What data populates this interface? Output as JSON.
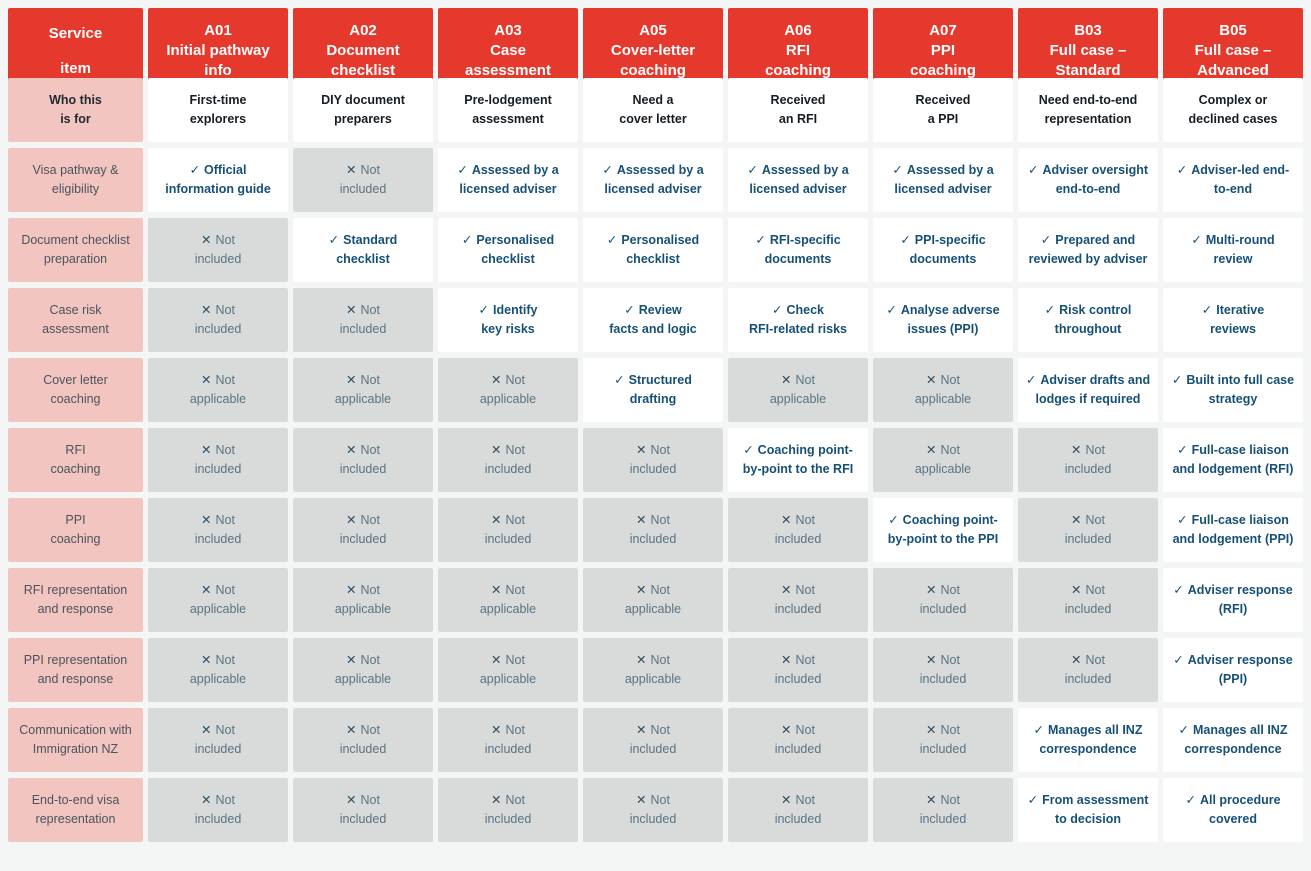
{
  "colors": {
    "page_background": "#f4f5f5",
    "header_background": "#e5392d",
    "header_text": "#ffffff",
    "row_label_background": "#f2c5c0",
    "row_label_text": "#4a545e",
    "included_text": "#175077",
    "excluded_background": "#d9dbda",
    "excluded_text": "#5a7382"
  },
  "table": {
    "corner_header": "Service\n\nitem",
    "column_headers": [
      "A01\nInitial pathway\ninfo",
      "A02\nDocument\nchecklist",
      "A03\nCase\nassessment",
      "A05\nCover-letter\ncoaching",
      "A06\nRFI\ncoaching",
      "A07\nPPI\ncoaching",
      "B03\nFull case –\nStandard",
      "B05\nFull case –\nAdvanced"
    ],
    "marks": {
      "yes": "✓",
      "no": "✕"
    },
    "rows": [
      {
        "label": "Who this\nis for",
        "label_bold": true,
        "cells": [
          {
            "type": "info",
            "text": "First-time\nexplorers"
          },
          {
            "type": "info",
            "text": "DIY document\npreparers"
          },
          {
            "type": "info",
            "text": "Pre-lodgement\nassessment"
          },
          {
            "type": "info",
            "text": "Need a\ncover letter"
          },
          {
            "type": "info",
            "text": "Received\nan RFI"
          },
          {
            "type": "info",
            "text": "Received\na PPI"
          },
          {
            "type": "info",
            "text": "Need end-to-end\nrepresentation"
          },
          {
            "type": "info",
            "text": "Complex or\ndeclined cases"
          }
        ]
      },
      {
        "label": "Visa pathway &\neligibility",
        "cells": [
          {
            "type": "yes",
            "text": "Official\ninformation guide"
          },
          {
            "type": "no",
            "text": "Not\nincluded"
          },
          {
            "type": "yes",
            "text": "Assessed by a\nlicensed adviser"
          },
          {
            "type": "yes",
            "text": "Assessed by a\nlicensed adviser"
          },
          {
            "type": "yes",
            "text": "Assessed by a\nlicensed adviser"
          },
          {
            "type": "yes",
            "text": "Assessed by a\nlicensed adviser"
          },
          {
            "type": "yes",
            "text": "Adviser oversight\nend-to-end"
          },
          {
            "type": "yes",
            "text": "Adviser-led end-\nto-end"
          }
        ]
      },
      {
        "label": "Document checklist\npreparation",
        "cells": [
          {
            "type": "no",
            "text": "Not\nincluded"
          },
          {
            "type": "yes",
            "text": "Standard\nchecklist"
          },
          {
            "type": "yes",
            "text": "Personalised\nchecklist"
          },
          {
            "type": "yes",
            "text": "Personalised\nchecklist"
          },
          {
            "type": "yes",
            "text": "RFI-specific\ndocuments"
          },
          {
            "type": "yes",
            "text": "PPI-specific\ndocuments"
          },
          {
            "type": "yes",
            "text": "Prepared and\nreviewed by adviser"
          },
          {
            "type": "yes",
            "text": "Multi-round\nreview"
          }
        ]
      },
      {
        "label": "Case risk\nassessment",
        "cells": [
          {
            "type": "no",
            "text": "Not\nincluded"
          },
          {
            "type": "no",
            "text": "Not\nincluded"
          },
          {
            "type": "yes",
            "text": "Identify\nkey risks"
          },
          {
            "type": "yes",
            "text": "Review\nfacts and logic"
          },
          {
            "type": "yes",
            "text": "Check\nRFI-related risks"
          },
          {
            "type": "yes",
            "text": "Analyse adverse\nissues (PPI)"
          },
          {
            "type": "yes",
            "text": "Risk control\nthroughout"
          },
          {
            "type": "yes",
            "text": "Iterative\nreviews"
          }
        ]
      },
      {
        "label": "Cover letter\ncoaching",
        "cells": [
          {
            "type": "no",
            "text": "Not\napplicable"
          },
          {
            "type": "no",
            "text": "Not\napplicable"
          },
          {
            "type": "no",
            "text": "Not\napplicable"
          },
          {
            "type": "yes",
            "text": "Structured\ndrafting"
          },
          {
            "type": "no",
            "text": "Not\napplicable"
          },
          {
            "type": "no",
            "text": "Not\napplicable"
          },
          {
            "type": "yes",
            "text": "Adviser drafts and\nlodges if required"
          },
          {
            "type": "yes",
            "text": "Built into full case\nstrategy"
          }
        ]
      },
      {
        "label": "RFI\ncoaching",
        "cells": [
          {
            "type": "no",
            "text": "Not\nincluded"
          },
          {
            "type": "no",
            "text": "Not\nincluded"
          },
          {
            "type": "no",
            "text": "Not\nincluded"
          },
          {
            "type": "no",
            "text": "Not\nincluded"
          },
          {
            "type": "yes",
            "text": "Coaching point-\nby-point to the RFI"
          },
          {
            "type": "no",
            "text": "Not\napplicable"
          },
          {
            "type": "no",
            "text": "Not\nincluded"
          },
          {
            "type": "yes",
            "text": "Full-case liaison\nand lodgement (RFI)"
          }
        ]
      },
      {
        "label": "PPI\ncoaching",
        "cells": [
          {
            "type": "no",
            "text": "Not\nincluded"
          },
          {
            "type": "no",
            "text": "Not\nincluded"
          },
          {
            "type": "no",
            "text": "Not\nincluded"
          },
          {
            "type": "no",
            "text": "Not\nincluded"
          },
          {
            "type": "no",
            "text": "Not\nincluded"
          },
          {
            "type": "yes",
            "text": "Coaching point-\nby-point to the PPI"
          },
          {
            "type": "no",
            "text": "Not\nincluded"
          },
          {
            "type": "yes",
            "text": "Full-case liaison\nand lodgement (PPI)"
          }
        ]
      },
      {
        "label": "RFI representation\nand  response",
        "cells": [
          {
            "type": "no",
            "text": "Not\napplicable"
          },
          {
            "type": "no",
            "text": "Not\napplicable"
          },
          {
            "type": "no",
            "text": "Not\napplicable"
          },
          {
            "type": "no",
            "text": "Not\napplicable"
          },
          {
            "type": "no",
            "text": "Not\nincluded"
          },
          {
            "type": "no",
            "text": "Not\nincluded"
          },
          {
            "type": "no",
            "text": "Not\nincluded"
          },
          {
            "type": "yes",
            "text": "Adviser response\n(RFI)"
          }
        ]
      },
      {
        "label": "PPI representation\nand  response",
        "cells": [
          {
            "type": "no",
            "text": "Not\napplicable"
          },
          {
            "type": "no",
            "text": "Not\napplicable"
          },
          {
            "type": "no",
            "text": "Not\napplicable"
          },
          {
            "type": "no",
            "text": "Not\napplicable"
          },
          {
            "type": "no",
            "text": "Not\nincluded"
          },
          {
            "type": "no",
            "text": "Not\nincluded"
          },
          {
            "type": "no",
            "text": "Not\nincluded"
          },
          {
            "type": "yes",
            "text": "Adviser response\n(PPI)"
          }
        ]
      },
      {
        "label": "Communication with\nImmigration NZ",
        "cells": [
          {
            "type": "no",
            "text": "Not\nincluded"
          },
          {
            "type": "no",
            "text": "Not\nincluded"
          },
          {
            "type": "no",
            "text": "Not\nincluded"
          },
          {
            "type": "no",
            "text": "Not\nincluded"
          },
          {
            "type": "no",
            "text": "Not\nincluded"
          },
          {
            "type": "no",
            "text": "Not\nincluded"
          },
          {
            "type": "yes",
            "text": "Manages all INZ\ncorrespondence"
          },
          {
            "type": "yes",
            "text": "Manages all INZ\ncorrespondence"
          }
        ]
      },
      {
        "label": "End-to-end visa\nrepresentation",
        "cells": [
          {
            "type": "no",
            "text": "Not\nincluded"
          },
          {
            "type": "no",
            "text": "Not\nincluded"
          },
          {
            "type": "no",
            "text": "Not\nincluded"
          },
          {
            "type": "no",
            "text": "Not\nincluded"
          },
          {
            "type": "no",
            "text": "Not\nincluded"
          },
          {
            "type": "no",
            "text": "Not\nincluded"
          },
          {
            "type": "yes",
            "text": "From assessment\nto decision"
          },
          {
            "type": "yes",
            "text": "All procedure\ncovered"
          }
        ]
      }
    ]
  }
}
